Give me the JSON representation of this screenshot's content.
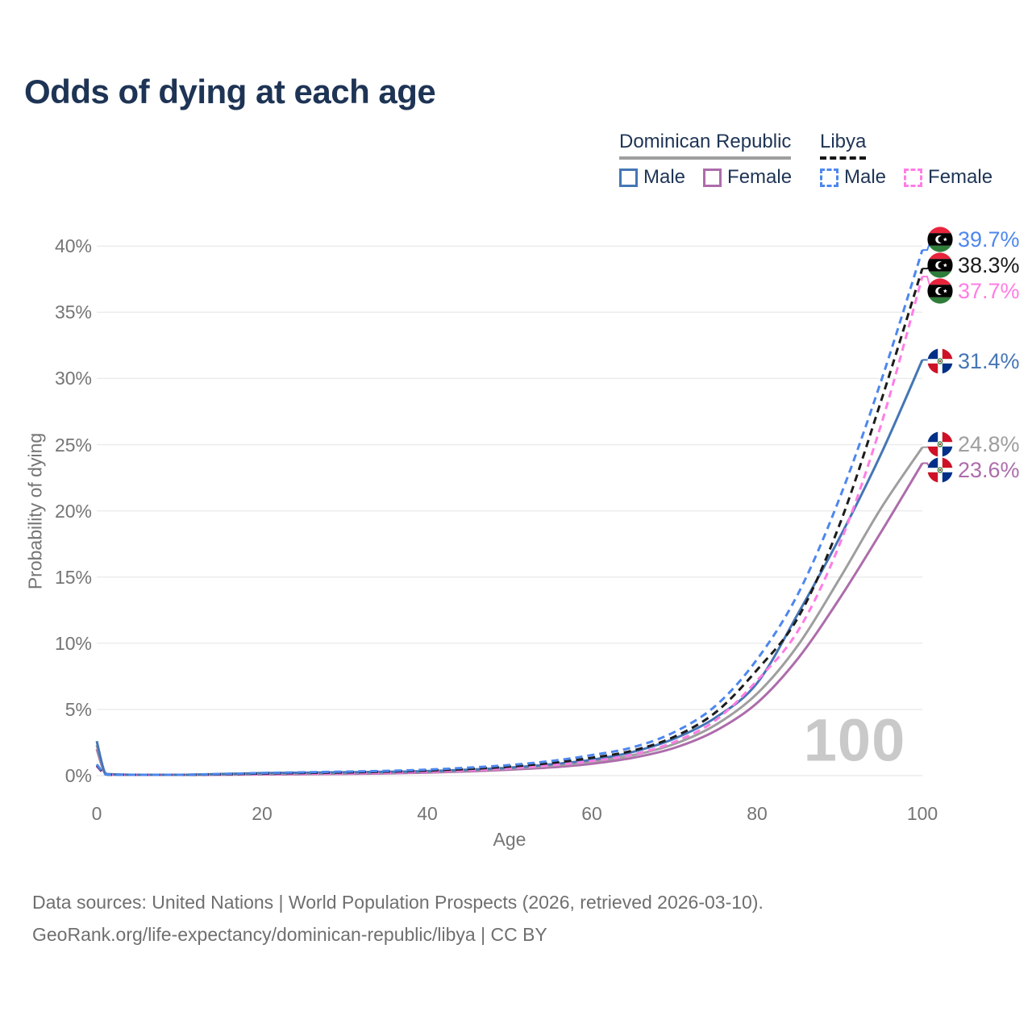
{
  "title": "Odds of dying at each age",
  "legend": {
    "groups": [
      {
        "label": "Dominican Republic",
        "underline": "solid",
        "underline_color": "#9e9e9e",
        "items": [
          {
            "label": "Male",
            "color": "#4576b5",
            "dash": false
          },
          {
            "label": "Female",
            "color": "#ad6cab",
            "dash": false
          }
        ]
      },
      {
        "label": "Libya",
        "underline": "dashed",
        "underline_color": "#161616",
        "items": [
          {
            "label": "Male",
            "color": "#4d87ee",
            "dash": true
          },
          {
            "label": "Female",
            "color": "#ff7de4",
            "dash": true
          }
        ]
      }
    ]
  },
  "chart_data": {
    "type": "line",
    "title": "Odds of dying at each age",
    "xlabel": "Age",
    "ylabel": "Probability of dying",
    "xlim": [
      0,
      100
    ],
    "ylim": [
      0,
      40
    ],
    "xticks": [
      0,
      20,
      40,
      60,
      80,
      100
    ],
    "xtick_labels": [
      "0",
      "20",
      "40",
      "60",
      "80",
      "100"
    ],
    "yticks": [
      0,
      5,
      10,
      15,
      20,
      25,
      30,
      35,
      40
    ],
    "ytick_labels": [
      "0%",
      "5%",
      "10%",
      "15%",
      "20%",
      "25%",
      "30%",
      "35%",
      "40%"
    ],
    "grid": "horizontal",
    "gridline_color": "#ececec",
    "watermark": "100",
    "x": [
      0,
      1,
      2,
      5,
      10,
      15,
      20,
      25,
      30,
      35,
      40,
      45,
      50,
      55,
      60,
      65,
      70,
      75,
      80,
      85,
      90,
      95,
      100
    ],
    "series": [
      {
        "name": "Libya Male",
        "country": "Libya",
        "sex": "Male",
        "flag": "ly",
        "color": "#4d87ee",
        "dash": true,
        "end_label": "39.7%",
        "values": [
          0.85,
          0.12,
          0.07,
          0.05,
          0.06,
          0.12,
          0.2,
          0.25,
          0.3,
          0.36,
          0.45,
          0.6,
          0.8,
          1.1,
          1.55,
          2.15,
          3.3,
          5.3,
          8.8,
          13.8,
          21.0,
          29.8,
          39.7
        ]
      },
      {
        "name": "Libya Both sexes",
        "country": "Libya",
        "sex": "Both",
        "flag": "ly",
        "color": "#1c1c1c",
        "dash": true,
        "end_label": "38.3%",
        "values": [
          0.78,
          0.11,
          0.06,
          0.05,
          0.05,
          0.1,
          0.16,
          0.2,
          0.24,
          0.3,
          0.38,
          0.5,
          0.68,
          0.95,
          1.35,
          1.9,
          2.95,
          4.8,
          8.0,
          12.0,
          19.0,
          28.3,
          38.3
        ]
      },
      {
        "name": "Libya Female",
        "country": "Libya",
        "sex": "Female",
        "flag": "ly",
        "color": "#ff7de4",
        "dash": true,
        "end_label": "37.7%",
        "values": [
          0.7,
          0.1,
          0.06,
          0.04,
          0.05,
          0.08,
          0.11,
          0.14,
          0.17,
          0.22,
          0.3,
          0.4,
          0.55,
          0.78,
          1.1,
          1.6,
          2.55,
          4.2,
          7.2,
          11.0,
          17.5,
          26.5,
          37.7
        ]
      },
      {
        "name": "Dominican Republic Male",
        "country": "Dominican Republic",
        "sex": "Male",
        "flag": "do",
        "color": "#4576b5",
        "dash": false,
        "end_label": "31.4%",
        "values": [
          2.6,
          0.2,
          0.1,
          0.06,
          0.06,
          0.12,
          0.19,
          0.22,
          0.25,
          0.29,
          0.34,
          0.45,
          0.6,
          0.85,
          1.2,
          1.8,
          2.8,
          4.4,
          7.0,
          12.3,
          18.0,
          24.3,
          31.4
        ]
      },
      {
        "name": "Dominican Republic Both sexes",
        "country": "Dominican Republic",
        "sex": "Both",
        "flag": "do",
        "color": "#9e9e9e",
        "dash": false,
        "end_label": "24.8%",
        "values": [
          2.3,
          0.18,
          0.09,
          0.05,
          0.05,
          0.1,
          0.14,
          0.17,
          0.19,
          0.23,
          0.29,
          0.39,
          0.53,
          0.74,
          1.05,
          1.55,
          2.4,
          3.85,
          6.2,
          9.9,
          14.9,
          20.2,
          24.8
        ]
      },
      {
        "name": "Dominican Republic Female",
        "country": "Dominican Republic",
        "sex": "Female",
        "flag": "do",
        "color": "#ad6cab",
        "dash": false,
        "end_label": "23.6%",
        "values": [
          2.0,
          0.16,
          0.08,
          0.04,
          0.04,
          0.07,
          0.09,
          0.11,
          0.13,
          0.17,
          0.23,
          0.32,
          0.45,
          0.62,
          0.9,
          1.35,
          2.1,
          3.4,
          5.5,
          8.9,
          13.4,
          18.4,
          23.6
        ]
      }
    ]
  },
  "footer": {
    "line1": "Data sources: United Nations | World Population Prospects (2026, retrieved 2026-03-10).",
    "line2": "GeoRank.org/life-expectancy/dominican-republic/libya | CC BY"
  }
}
